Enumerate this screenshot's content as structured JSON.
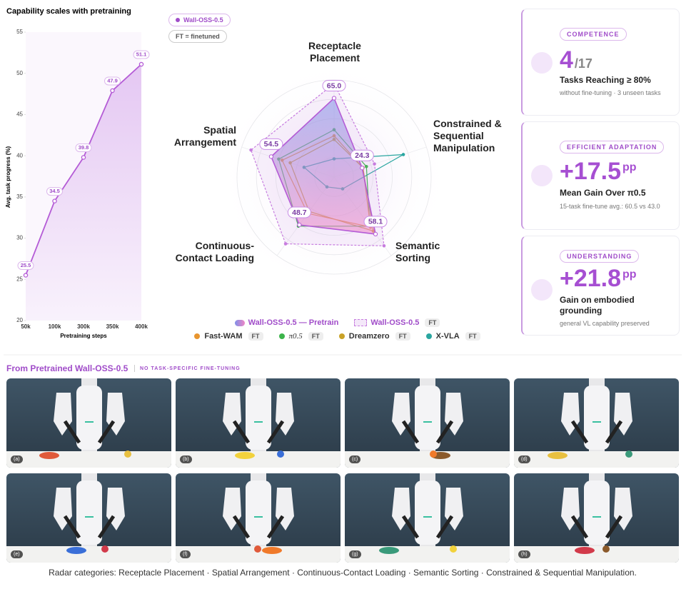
{
  "chart_data": [
    {
      "type": "line",
      "title": "Capability scales with pretraining",
      "xlabel": "Pretraining steps",
      "ylabel": "Avg. task progress (%)",
      "categories": [
        "50k",
        "100k",
        "300k",
        "350k",
        "400k"
      ],
      "series": [
        {
          "name": "Wall-OSS-0.5",
          "color": "#b45bd6",
          "values": [
            25.5,
            34.5,
            39.8,
            47.9,
            51.1
          ]
        }
      ],
      "ylim": [
        20,
        55
      ],
      "yticks": [
        20,
        25,
        30,
        35,
        40,
        45,
        50,
        55
      ],
      "note": "FT = finetuned"
    },
    {
      "type": "radar",
      "categories": [
        "Receptacle Placement",
        "Constrained & Sequential Manipulation",
        "Semantic Sorting",
        "Continuous-Contact Loading",
        "Spatial Arrangement"
      ],
      "rlim": [
        0,
        80
      ],
      "rticks": [
        16,
        32,
        48,
        64,
        80
      ],
      "series": [
        {
          "name": "Wall-OSS-0.5 — Pretrain",
          "color": "#b45bd6",
          "fill": "gradient",
          "values": [
            65.0,
            24.3,
            58.1,
            48.7,
            54.5
          ],
          "value_labels": [
            "65.0",
            "24.3",
            "58.1",
            "48.7",
            "54.5"
          ]
        },
        {
          "name": "Wall-OSS-0.5",
          "tag": "FT",
          "color": "#c77ddf",
          "dashed": true,
          "values": [
            77,
            35,
            70,
            68,
            72
          ]
        },
        {
          "name": "Fast-WAM",
          "tag": "FT",
          "color": "#e8952f",
          "values": [
            34,
            25,
            51,
            37,
            45
          ]
        },
        {
          "name": "π0.5",
          "tag": "FT",
          "color": "#3cb44b",
          "values": [
            39,
            28,
            50,
            50,
            48
          ]
        },
        {
          "name": "Dreamzero",
          "tag": "FT",
          "color": "#c9a227",
          "values": [
            31,
            25,
            55,
            35,
            38
          ]
        },
        {
          "name": "X-VLA",
          "tag": "FT",
          "color": "#2aa6a0",
          "values": [
            15,
            60,
            12,
            10,
            26
          ]
        }
      ]
    }
  ],
  "cards": [
    {
      "label": "COMPETENCE",
      "value": "4",
      "unit": "/17",
      "title": "Tasks Reaching ≥ 80%",
      "subtitle": "without fine-tuning · 3 unseen tasks"
    },
    {
      "label": "EFFICIENT ADAPTATION",
      "value": "+17.5",
      "unit": "pp",
      "title": "Mean Gain Over π0.5",
      "subtitle": "15-task fine-tune avg.: 60.5 vs 43.0"
    },
    {
      "label": "UNDERSTANDING",
      "value": "+21.8",
      "unit": "pp",
      "title": "Gain on embodied grounding",
      "subtitle": "general VL capability preserved"
    }
  ],
  "gallery": {
    "title": "From Pretrained Wall-OSS-0.5",
    "tag": "NO TASK-SPECIFIC FINE-TUNING",
    "panels": [
      "(a)",
      "(b)",
      "(c)",
      "(d)",
      "(e)",
      "(f)",
      "(g)",
      "(h)"
    ]
  },
  "caption": "Radar categories: Receptacle Placement · Spatial Arrangement · Continuous-Contact Loading · Semantic Sorting · Constrained & Sequential Manipulation."
}
